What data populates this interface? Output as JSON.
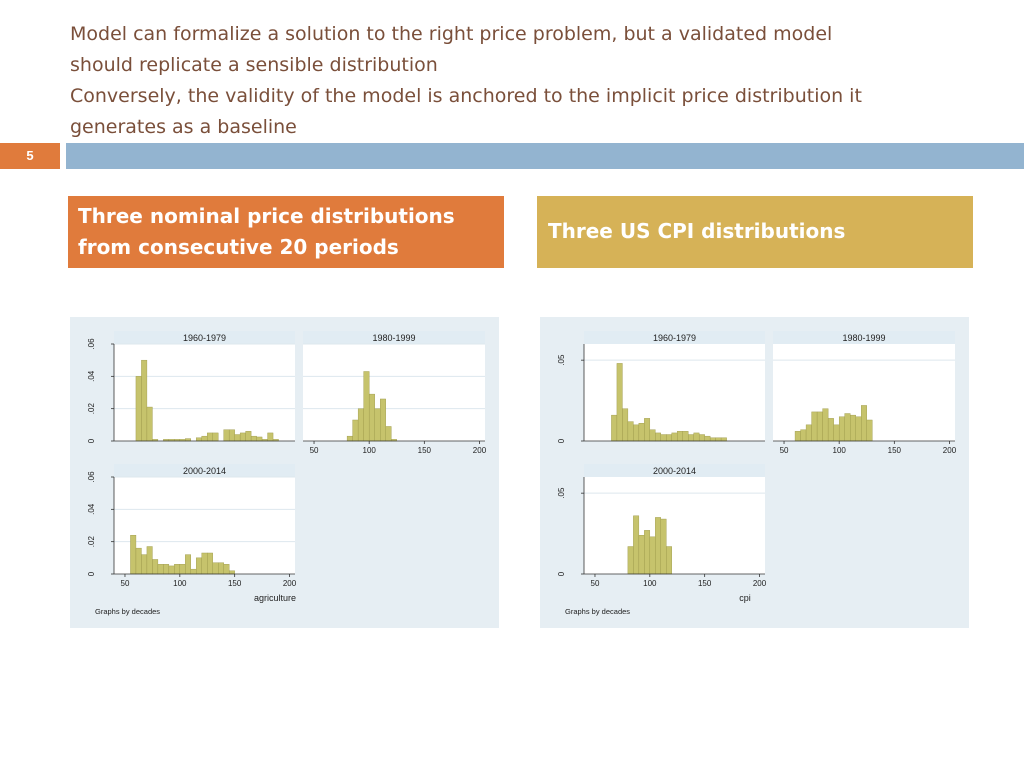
{
  "title": {
    "lines": [
      "Model can formalize a solution to the right price problem, but a validated model",
      "should replicate a sensible distribution",
      "Conversely, the validity of the model is anchored to the implicit price distribution it",
      "generates as a baseline"
    ]
  },
  "slide_number": "5",
  "boxes": {
    "left": {
      "line1": "Three nominal price distributions",
      "line2": "from consecutive 20 periods"
    },
    "right": {
      "text": "Three US CPI distributions"
    }
  },
  "colors": {
    "orange": "#e07b3c",
    "gold": "#d6b257",
    "blue_bar": "#93b4d0",
    "panel_bg": "#e6eef3",
    "header_bg": "#e1ecf3",
    "bar_fill": "#c6c36c",
    "bar_stroke": "#9a9647"
  },
  "chart_data": [
    {
      "type": "bar",
      "id": "agri",
      "xlabel": "agriculture",
      "note": "Graphs by decades",
      "xlim": [
        40,
        205
      ],
      "ylim": [
        0,
        0.06
      ],
      "xticks": [
        50,
        100,
        150,
        200
      ],
      "yticks": [
        0,
        0.02,
        0.04,
        0.06
      ],
      "ytick_labels": [
        "0",
        ".02",
        ".04",
        ".06"
      ],
      "bin_width": 5,
      "panels": [
        {
          "title": "1960-1979",
          "bins": [
            {
              "x": 60,
              "y": 0.04
            },
            {
              "x": 65,
              "y": 0.05
            },
            {
              "x": 70,
              "y": 0.021
            },
            {
              "x": 75,
              "y": 0.001
            },
            {
              "x": 85,
              "y": 0.001
            },
            {
              "x": 90,
              "y": 0.001
            },
            {
              "x": 95,
              "y": 0.001
            },
            {
              "x": 100,
              "y": 0.001
            },
            {
              "x": 105,
              "y": 0.0015
            },
            {
              "x": 115,
              "y": 0.002
            },
            {
              "x": 120,
              "y": 0.003
            },
            {
              "x": 125,
              "y": 0.005
            },
            {
              "x": 130,
              "y": 0.005
            },
            {
              "x": 140,
              "y": 0.007
            },
            {
              "x": 145,
              "y": 0.007
            },
            {
              "x": 150,
              "y": 0.004
            },
            {
              "x": 155,
              "y": 0.005
            },
            {
              "x": 160,
              "y": 0.006
            },
            {
              "x": 165,
              "y": 0.003
            },
            {
              "x": 170,
              "y": 0.0025
            },
            {
              "x": 175,
              "y": 0.001
            },
            {
              "x": 180,
              "y": 0.005
            },
            {
              "x": 185,
              "y": 0.001
            }
          ]
        },
        {
          "title": "1980-1999",
          "bins": [
            {
              "x": 80,
              "y": 0.003
            },
            {
              "x": 85,
              "y": 0.013
            },
            {
              "x": 90,
              "y": 0.02
            },
            {
              "x": 95,
              "y": 0.043
            },
            {
              "x": 100,
              "y": 0.029
            },
            {
              "x": 105,
              "y": 0.02
            },
            {
              "x": 110,
              "y": 0.026
            },
            {
              "x": 115,
              "y": 0.009
            },
            {
              "x": 120,
              "y": 0.001
            }
          ]
        },
        {
          "title": "2000-2014",
          "bins": [
            {
              "x": 55,
              "y": 0.024
            },
            {
              "x": 60,
              "y": 0.016
            },
            {
              "x": 65,
              "y": 0.012
            },
            {
              "x": 70,
              "y": 0.017
            },
            {
              "x": 75,
              "y": 0.009
            },
            {
              "x": 80,
              "y": 0.006
            },
            {
              "x": 85,
              "y": 0.006
            },
            {
              "x": 90,
              "y": 0.005
            },
            {
              "x": 95,
              "y": 0.006
            },
            {
              "x": 100,
              "y": 0.006
            },
            {
              "x": 105,
              "y": 0.012
            },
            {
              "x": 110,
              "y": 0.003
            },
            {
              "x": 115,
              "y": 0.01
            },
            {
              "x": 120,
              "y": 0.013
            },
            {
              "x": 125,
              "y": 0.013
            },
            {
              "x": 130,
              "y": 0.007
            },
            {
              "x": 135,
              "y": 0.007
            },
            {
              "x": 140,
              "y": 0.006
            },
            {
              "x": 145,
              "y": 0.002
            }
          ]
        }
      ]
    },
    {
      "type": "bar",
      "id": "cpi",
      "xlabel": "cpi",
      "note": "Graphs by decades",
      "xlim": [
        40,
        205
      ],
      "ylim": [
        0,
        0.06
      ],
      "xticks": [
        50,
        100,
        150,
        200
      ],
      "yticks": [
        0,
        0.05
      ],
      "ytick_labels": [
        "0",
        ".05"
      ],
      "bin_width": 5,
      "panels": [
        {
          "title": "1960-1979",
          "bins": [
            {
              "x": 65,
              "y": 0.016
            },
            {
              "x": 70,
              "y": 0.048
            },
            {
              "x": 75,
              "y": 0.02
            },
            {
              "x": 80,
              "y": 0.012
            },
            {
              "x": 85,
              "y": 0.01
            },
            {
              "x": 90,
              "y": 0.011
            },
            {
              "x": 95,
              "y": 0.014
            },
            {
              "x": 100,
              "y": 0.007
            },
            {
              "x": 105,
              "y": 0.005
            },
            {
              "x": 110,
              "y": 0.004
            },
            {
              "x": 115,
              "y": 0.004
            },
            {
              "x": 120,
              "y": 0.005
            },
            {
              "x": 125,
              "y": 0.006
            },
            {
              "x": 130,
              "y": 0.006
            },
            {
              "x": 135,
              "y": 0.004
            },
            {
              "x": 140,
              "y": 0.005
            },
            {
              "x": 145,
              "y": 0.004
            },
            {
              "x": 150,
              "y": 0.003
            },
            {
              "x": 155,
              "y": 0.002
            },
            {
              "x": 160,
              "y": 0.002
            },
            {
              "x": 165,
              "y": 0.002
            }
          ]
        },
        {
          "title": "1980-1999",
          "bins": [
            {
              "x": 60,
              "y": 0.006
            },
            {
              "x": 65,
              "y": 0.007
            },
            {
              "x": 70,
              "y": 0.01
            },
            {
              "x": 75,
              "y": 0.018
            },
            {
              "x": 80,
              "y": 0.018
            },
            {
              "x": 85,
              "y": 0.02
            },
            {
              "x": 90,
              "y": 0.014
            },
            {
              "x": 95,
              "y": 0.01
            },
            {
              "x": 100,
              "y": 0.015
            },
            {
              "x": 105,
              "y": 0.017
            },
            {
              "x": 110,
              "y": 0.016
            },
            {
              "x": 115,
              "y": 0.015
            },
            {
              "x": 120,
              "y": 0.022
            },
            {
              "x": 125,
              "y": 0.013
            }
          ]
        },
        {
          "title": "2000-2014",
          "bins": [
            {
              "x": 80,
              "y": 0.017
            },
            {
              "x": 85,
              "y": 0.036
            },
            {
              "x": 90,
              "y": 0.024
            },
            {
              "x": 95,
              "y": 0.027
            },
            {
              "x": 100,
              "y": 0.023
            },
            {
              "x": 105,
              "y": 0.035
            },
            {
              "x": 110,
              "y": 0.034
            },
            {
              "x": 115,
              "y": 0.017
            }
          ]
        }
      ]
    }
  ]
}
